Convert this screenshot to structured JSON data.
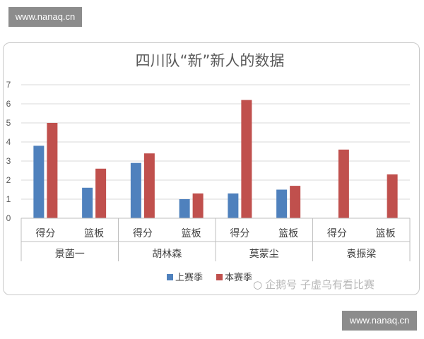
{
  "watermark_top": "www.nanaq.cn",
  "watermark_bottom": "www.nanaq.cn",
  "social_watermark": "企鹅号 子虚乌有看比赛",
  "chart_data": {
    "type": "bar",
    "title": "四川队“新”新人的数据",
    "xlabel": "",
    "ylabel": "",
    "ylim": [
      0,
      7
    ],
    "yticks": [
      "0",
      "1",
      "2",
      "3",
      "4",
      "5",
      "6",
      "7"
    ],
    "grid": true,
    "legend_position": "bottom",
    "groups": [
      {
        "name": "景菡一",
        "categories": [
          "得分",
          "篮板"
        ]
      },
      {
        "name": "胡林森",
        "categories": [
          "得分",
          "篮板"
        ]
      },
      {
        "name": "莫蒙尘",
        "categories": [
          "得分",
          "篮板"
        ]
      },
      {
        "name": "袁振梁",
        "categories": [
          "得分",
          "篮板"
        ]
      }
    ],
    "series": [
      {
        "name": "上赛季",
        "color": "#4f81bd",
        "values": [
          3.8,
          1.6,
          2.9,
          1.0,
          1.3,
          1.5,
          null,
          null
        ]
      },
      {
        "name": "本赛季",
        "color": "#c0504d",
        "values": [
          5.0,
          2.6,
          3.4,
          1.3,
          6.2,
          1.7,
          3.6,
          2.3
        ]
      }
    ]
  }
}
